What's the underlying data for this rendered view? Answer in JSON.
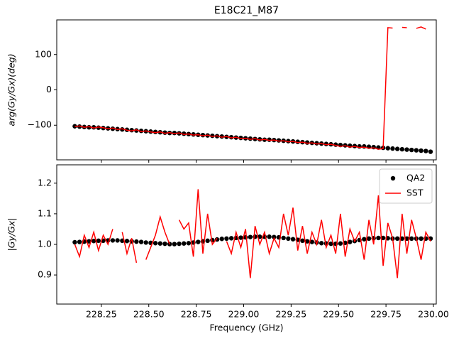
{
  "chart_data": [
    {
      "type": "line",
      "title": "E18C21_M87",
      "ylabel": "arg(Gy/Gx)(deg)",
      "xlim": [
        228.015,
        230.015
      ],
      "xticks": [
        228.25,
        228.5,
        228.75,
        229.0,
        229.25,
        229.5,
        229.75,
        230.0
      ],
      "xtick_labels": false,
      "ylim": [
        -198,
        198
      ],
      "yticks": [
        {
          "value": -100,
          "label": "−100"
        },
        0,
        100
      ],
      "legend": false,
      "x": [
        228.11,
        228.135,
        228.16,
        228.185,
        228.21,
        228.235,
        228.26,
        228.285,
        228.31,
        228.335,
        228.36,
        228.385,
        228.41,
        228.435,
        228.46,
        228.485,
        228.51,
        228.535,
        228.56,
        228.585,
        228.61,
        228.635,
        228.66,
        228.685,
        228.71,
        228.735,
        228.76,
        228.785,
        228.81,
        228.835,
        228.86,
        228.885,
        228.91,
        228.935,
        228.96,
        228.985,
        229.01,
        229.035,
        229.06,
        229.085,
        229.11,
        229.135,
        229.16,
        229.185,
        229.21,
        229.235,
        229.26,
        229.285,
        229.31,
        229.335,
        229.36,
        229.385,
        229.41,
        229.435,
        229.46,
        229.485,
        229.51,
        229.535,
        229.56,
        229.585,
        229.61,
        229.635,
        229.66,
        229.685,
        229.71,
        229.735,
        229.76,
        229.785,
        229.81,
        229.835,
        229.86,
        229.885,
        229.91,
        229.935,
        229.96,
        229.985
      ],
      "series": [
        {
          "name": "QA2",
          "color": "#000000",
          "style": "markers",
          "values": [
            -103,
            -104,
            -105,
            -106,
            -106,
            -107,
            -108,
            -109,
            -110,
            -111,
            -112,
            -113,
            -114,
            -115,
            -116,
            -117,
            -118,
            -119,
            -120,
            -121,
            -122,
            -122,
            -123,
            -124,
            -125,
            -126,
            -127,
            -128,
            -129,
            -130,
            -131,
            -132,
            -133,
            -134,
            -135,
            -136,
            -137,
            -138,
            -139,
            -140,
            -141,
            -141,
            -142,
            -143,
            -144,
            -145,
            -146,
            -147,
            -148,
            -149,
            -150,
            -151,
            -152,
            -153,
            -154,
            -155,
            -156,
            -157,
            -158,
            -159,
            -160,
            -160,
            -161,
            -162,
            -163,
            -164,
            -165,
            -166,
            -167,
            -168,
            -169,
            -170,
            -171,
            -172,
            -173,
            -175
          ]
        },
        {
          "name": "SST",
          "color": "#ff0000",
          "style": "line",
          "values": [
            -104,
            -102,
            -106,
            -104,
            -108,
            -105,
            -107,
            -110,
            -108,
            -112,
            -110,
            -114,
            -116,
            -113,
            -118,
            -116,
            -119,
            -121,
            -119,
            -123,
            -121,
            -124,
            -122,
            -126,
            -125,
            -128,
            -127,
            -130,
            -128,
            -132,
            -130,
            -134,
            -132,
            -136,
            -134,
            -138,
            -137,
            -140,
            -138,
            -142,
            -140,
            -143,
            -142,
            -145,
            -144,
            -147,
            -146,
            -149,
            -148,
            -151,
            -150,
            -153,
            -152,
            -155,
            -154,
            -157,
            -160,
            -158,
            -162,
            -160,
            -163,
            -162,
            -165,
            -164,
            -168,
            -166,
            176,
            175,
            null,
            177,
            176,
            null,
            174,
            178,
            172,
            null
          ]
        }
      ]
    },
    {
      "type": "line",
      "xlabel": "Frequency (GHz)",
      "ylabel": "|Gy/Gx|",
      "xlim": [
        228.015,
        230.015
      ],
      "xticks": [
        {
          "value": 228.25,
          "label": "228.25"
        },
        {
          "value": 228.5,
          "label": "228.50"
        },
        {
          "value": 228.75,
          "label": "228.75"
        },
        {
          "value": 229.0,
          "label": "229.00"
        },
        {
          "value": 229.25,
          "label": "229.25"
        },
        {
          "value": 229.5,
          "label": "229.50"
        },
        {
          "value": 229.75,
          "label": "229.75"
        },
        {
          "value": 230.0,
          "label": "230.00"
        }
      ],
      "xtick_labels": true,
      "ylim": [
        0.805,
        1.26
      ],
      "yticks": [
        0.9,
        {
          "value": 1.0,
          "label": "1.0"
        },
        1.1,
        1.2
      ],
      "legend": "upper right",
      "x": [
        228.11,
        228.135,
        228.16,
        228.185,
        228.21,
        228.235,
        228.26,
        228.285,
        228.31,
        228.335,
        228.36,
        228.385,
        228.41,
        228.435,
        228.46,
        228.485,
        228.51,
        228.535,
        228.56,
        228.585,
        228.61,
        228.635,
        228.66,
        228.685,
        228.71,
        228.735,
        228.76,
        228.785,
        228.81,
        228.835,
        228.86,
        228.885,
        228.91,
        228.935,
        228.96,
        228.985,
        229.01,
        229.035,
        229.06,
        229.085,
        229.11,
        229.135,
        229.16,
        229.185,
        229.21,
        229.235,
        229.26,
        229.285,
        229.31,
        229.335,
        229.36,
        229.385,
        229.41,
        229.435,
        229.46,
        229.485,
        229.51,
        229.535,
        229.56,
        229.585,
        229.61,
        229.635,
        229.66,
        229.685,
        229.71,
        229.735,
        229.76,
        229.785,
        229.81,
        229.835,
        229.86,
        229.885,
        229.91,
        229.935,
        229.96,
        229.985
      ],
      "series": [
        {
          "name": "QA2",
          "color": "#000000",
          "style": "markers",
          "values": [
            1.007,
            1.008,
            1.009,
            1.01,
            1.011,
            1.012,
            1.012,
            1.013,
            1.013,
            1.013,
            1.012,
            1.011,
            1.01,
            1.009,
            1.008,
            1.006,
            1.005,
            1.004,
            1.003,
            1.002,
            1.001,
            1.001,
            1.002,
            1.003,
            1.004,
            1.006,
            1.008,
            1.01,
            1.012,
            1.014,
            1.016,
            1.018,
            1.019,
            1.02,
            1.021,
            1.022,
            1.023,
            1.024,
            1.025,
            1.025,
            1.025,
            1.025,
            1.024,
            1.023,
            1.021,
            1.019,
            1.017,
            1.015,
            1.012,
            1.01,
            1.008,
            1.006,
            1.004,
            1.003,
            1.002,
            1.002,
            1.003,
            1.005,
            1.008,
            1.011,
            1.014,
            1.017,
            1.019,
            1.02,
            1.021,
            1.021,
            1.02,
            1.019,
            1.019,
            1.019,
            1.019,
            1.019,
            1.019,
            1.019,
            1.019,
            1.019
          ]
        },
        {
          "name": "SST",
          "color": "#ff0000",
          "style": "line",
          "values": [
            1.0,
            0.96,
            1.03,
            0.99,
            1.04,
            0.98,
            1.03,
            1.0,
            1.05,
            null,
            1.04,
            0.97,
            1.02,
            0.94,
            null,
            0.95,
            0.99,
            1.03,
            1.09,
            1.04,
            1.0,
            null,
            1.08,
            1.05,
            1.07,
            0.96,
            1.18,
            0.97,
            1.1,
            1.0,
            1.02,
            null,
            1.01,
            0.97,
            1.04,
            0.99,
            1.05,
            0.89,
            1.06,
            1.0,
            1.04,
            0.97,
            1.02,
            0.99,
            1.1,
            1.03,
            1.12,
            0.98,
            1.06,
            0.97,
            1.04,
            1.0,
            1.08,
            0.99,
            1.03,
            0.97,
            1.1,
            0.96,
            1.05,
            1.01,
            1.04,
            0.95,
            1.08,
            1.0,
            1.16,
            0.93,
            1.07,
            1.02,
            0.89,
            1.1,
            0.97,
            1.08,
            1.02,
            0.95,
            1.04,
            1.01
          ]
        }
      ]
    }
  ]
}
